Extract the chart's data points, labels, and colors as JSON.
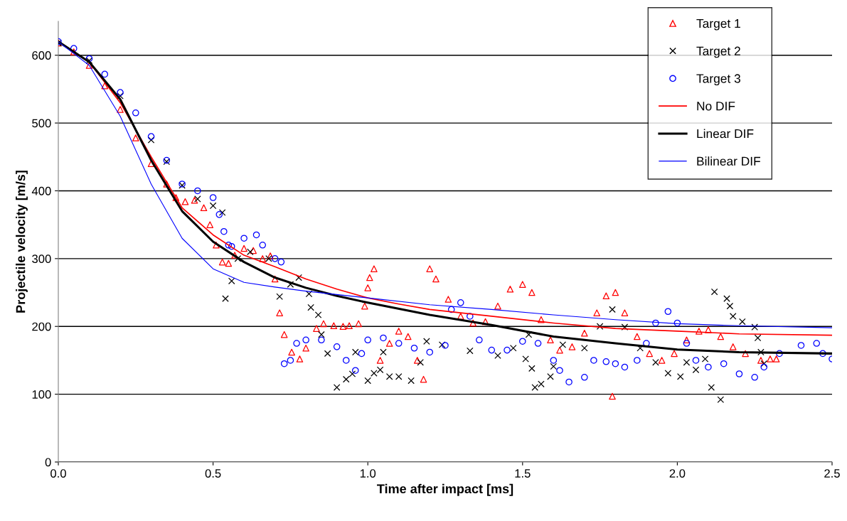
{
  "chart_data": {
    "type": "scatter",
    "xlabel": "Time after impact [ms]",
    "ylabel": "Projectile velocity [m/s]",
    "xlim": [
      0,
      2.5
    ],
    "xticks": [
      {
        "value": 0,
        "label": "0.0"
      },
      {
        "value": 0.5,
        "label": "0.5"
      },
      {
        "value": 1,
        "label": "1.0"
      },
      {
        "value": 1.5,
        "label": "1.5"
      },
      {
        "value": 2,
        "label": "2.0"
      },
      {
        "value": 2.5,
        "label": "2.5"
      }
    ],
    "ylim": [
      0,
      650
    ],
    "yticks": [
      0,
      100,
      200,
      300,
      400,
      500,
      600
    ],
    "grid": "y",
    "legend": "top right",
    "series": [
      {
        "name": "Target 1",
        "marker": "triangle",
        "color": "#ff0000",
        "x": [
          0,
          0.05,
          0.1,
          0.15,
          0.2,
          0.25,
          0.3,
          0.35,
          0.38,
          0.41,
          0.44,
          0.47,
          0.49,
          0.51,
          0.53,
          0.55,
          0.57,
          0.6,
          0.63,
          0.66,
          0.685,
          0.7,
          0.715,
          0.73,
          0.754,
          0.78,
          0.8,
          0.834,
          0.857,
          0.89,
          0.92,
          0.94,
          0.97,
          0.99,
          1.0,
          1.006,
          1.02,
          1.04,
          1.07,
          1.1,
          1.13,
          1.16,
          1.18,
          1.2,
          1.22,
          1.26,
          1.3,
          1.34,
          1.38,
          1.42,
          1.46,
          1.5,
          1.53,
          1.56,
          1.59,
          1.62,
          1.66,
          1.7,
          1.74,
          1.77,
          1.79,
          1.8,
          1.83,
          1.87,
          1.91,
          1.95,
          1.99,
          2.03,
          2.07,
          2.1,
          2.14,
          2.18,
          2.22,
          2.27,
          2.3,
          2.32
        ],
        "values": [
          618,
          605,
          585,
          555,
          520,
          478,
          440,
          410,
          390,
          384,
          386,
          375,
          350,
          320,
          295,
          293,
          305,
          315,
          312,
          300,
          304,
          270,
          220,
          188,
          162,
          152,
          168,
          197,
          204,
          201,
          200,
          201,
          204,
          230,
          257,
          272,
          285,
          150,
          175,
          193,
          185,
          150,
          122,
          285,
          270,
          240,
          215,
          205,
          207,
          230,
          255,
          262,
          250,
          210,
          180,
          165,
          170,
          190,
          220,
          245,
          97,
          250,
          220,
          185,
          160,
          150,
          160,
          180,
          193,
          195,
          185,
          170,
          160,
          150,
          152,
          152
        ]
      },
      {
        "name": "Target 2",
        "marker": "cross",
        "color": "#000000",
        "x": [
          0,
          0.1,
          0.2,
          0.3,
          0.35,
          0.4,
          0.45,
          0.5,
          0.53,
          0.54,
          0.56,
          0.58,
          0.62,
          0.68,
          0.715,
          0.75,
          0.777,
          0.81,
          0.816,
          0.84,
          0.85,
          0.87,
          0.9,
          0.93,
          0.95,
          0.96,
          1.0,
          1.02,
          1.04,
          1.05,
          1.07,
          1.1,
          1.14,
          1.17,
          1.19,
          1.24,
          1.33,
          1.42,
          1.47,
          1.51,
          1.52,
          1.53,
          1.54,
          1.56,
          1.59,
          1.6,
          1.63,
          1.7,
          1.75,
          1.79,
          1.83,
          1.88,
          1.93,
          1.97,
          2.01,
          2.03,
          2.06,
          2.09,
          2.11,
          2.14,
          2.12,
          2.16,
          2.17,
          2.18,
          2.21,
          2.25,
          2.26,
          2.27,
          2.28
        ],
        "values": [
          618,
          592,
          540,
          475,
          443,
          408,
          388,
          378,
          368,
          241,
          267,
          300,
          310,
          300,
          244,
          262,
          272,
          248,
          228,
          217,
          188,
          160,
          110,
          122,
          130,
          162,
          120,
          131,
          136,
          162,
          126,
          126,
          120,
          147,
          178,
          173,
          164,
          157,
          168,
          152,
          188,
          138,
          110,
          115,
          126,
          141,
          173,
          168,
          200,
          225,
          199,
          168,
          147,
          131,
          126,
          147,
          136,
          152,
          110,
          92,
          251,
          241,
          230,
          215,
          207,
          199,
          183,
          162,
          145
        ]
      },
      {
        "name": "Target 3",
        "marker": "circle",
        "color": "#0000ff",
        "x": [
          0,
          0.05,
          0.1,
          0.15,
          0.2,
          0.25,
          0.3,
          0.35,
          0.4,
          0.45,
          0.5,
          0.52,
          0.535,
          0.55,
          0.56,
          0.6,
          0.64,
          0.66,
          0.7,
          0.72,
          0.73,
          0.75,
          0.77,
          0.8,
          0.85,
          0.9,
          0.93,
          0.96,
          0.98,
          1.0,
          1.05,
          1.1,
          1.15,
          1.2,
          1.25,
          1.27,
          1.3,
          1.33,
          1.36,
          1.4,
          1.45,
          1.5,
          1.55,
          1.6,
          1.62,
          1.65,
          1.7,
          1.73,
          1.77,
          1.8,
          1.83,
          1.87,
          1.9,
          1.93,
          1.97,
          2.0,
          2.03,
          2.06,
          2.1,
          2.15,
          2.2,
          2.25,
          2.28,
          2.33,
          2.4,
          2.45,
          2.47,
          2.5
        ],
        "values": [
          620,
          610,
          595,
          572,
          545,
          515,
          480,
          445,
          410,
          400,
          390,
          365,
          340,
          320,
          318,
          330,
          335,
          320,
          300,
          295,
          145,
          150,
          175,
          180,
          180,
          170,
          150,
          135,
          160,
          180,
          183,
          175,
          168,
          162,
          172,
          225,
          235,
          215,
          180,
          165,
          165,
          178,
          175,
          150,
          135,
          118,
          125,
          150,
          148,
          145,
          140,
          150,
          175,
          205,
          222,
          205,
          175,
          150,
          140,
          145,
          130,
          125,
          140,
          160,
          172,
          175,
          160,
          152
        ]
      },
      {
        "name": "No DIF",
        "type": "line",
        "marker": "none",
        "color": "#ff0000",
        "x": [
          0,
          0.1,
          0.2,
          0.3,
          0.4,
          0.5,
          0.6,
          0.7,
          0.8,
          0.9,
          1.0,
          1.1,
          1.2,
          1.4,
          1.6,
          1.8,
          2.0,
          2.2,
          2.5
        ],
        "values": [
          620,
          590,
          530,
          450,
          375,
          335,
          305,
          288,
          270,
          255,
          242,
          233,
          225,
          215,
          205,
          197,
          193,
          189,
          187
        ]
      },
      {
        "name": "Linear DIF",
        "type": "line",
        "marker": "none",
        "color": "#000000",
        "x": [
          0,
          0.1,
          0.2,
          0.3,
          0.4,
          0.5,
          0.6,
          0.7,
          0.8,
          0.9,
          1.0,
          1.2,
          1.4,
          1.6,
          1.8,
          2.0,
          2.2,
          2.5
        ],
        "values": [
          620,
          590,
          535,
          445,
          370,
          325,
          295,
          272,
          257,
          245,
          235,
          217,
          202,
          185,
          175,
          166,
          162,
          160
        ]
      },
      {
        "name": "Bilinear DIF",
        "type": "line",
        "marker": "none",
        "color": "#0000ff",
        "x": [
          0,
          0.1,
          0.2,
          0.3,
          0.4,
          0.5,
          0.6,
          0.7,
          0.8,
          1.0,
          1.2,
          1.4,
          1.6,
          1.8,
          2.0,
          2.2,
          2.5
        ],
        "values": [
          620,
          585,
          510,
          410,
          330,
          285,
          265,
          258,
          252,
          242,
          232,
          225,
          217,
          210,
          204,
          201,
          198
        ]
      }
    ]
  }
}
